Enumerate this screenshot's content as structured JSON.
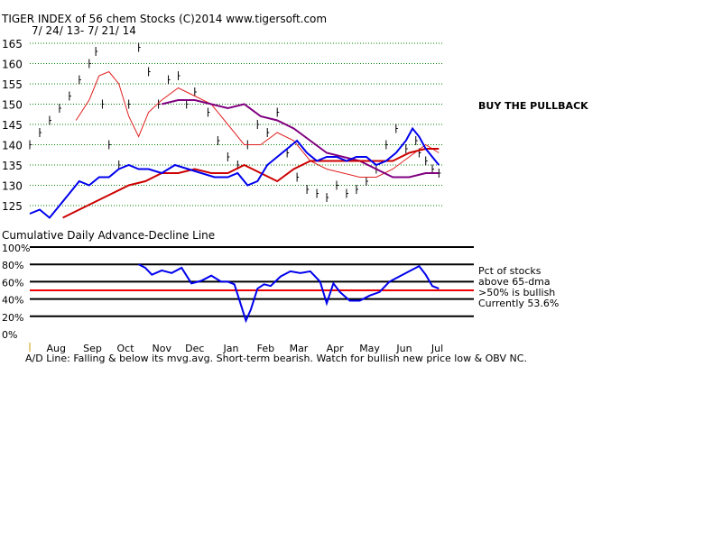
{
  "chart_data": [
    {
      "type": "line",
      "title": "TIGER INDEX of  56 chem Stocks  (C)2014  www.tigersoft.com",
      "subtitle": "7/ 24/ 13- 7/ 21/ 14",
      "annotation": "BUY THE PULLBACK",
      "ylim": [
        122,
        168
      ],
      "yticks": [
        125,
        130,
        135,
        140,
        145,
        150,
        155,
        160,
        165
      ],
      "grid": true,
      "x_index_range": [
        0,
        250
      ],
      "colors": {
        "price": "#000000",
        "ma_short": "#e02020",
        "ma_long": "#cc0000",
        "ma_mid": "#800080",
        "adline": "#0000ee",
        "grid": "#008000"
      },
      "series": [
        {
          "key": "price",
          "style": "bars",
          "x": [
            0,
            6,
            12,
            18,
            24,
            30,
            36,
            40,
            44,
            48,
            54,
            60,
            66,
            72,
            78,
            84,
            90,
            95,
            100,
            108,
            114,
            120,
            126,
            132,
            138,
            144,
            150,
            156,
            162,
            168,
            174,
            180,
            186,
            192,
            198,
            204,
            210,
            216,
            222,
            228,
            234,
            236,
            240,
            244,
            248
          ],
          "values": [
            140,
            143,
            146,
            149,
            152,
            156,
            160,
            163,
            150,
            140,
            135,
            150,
            164,
            158,
            150,
            156,
            157,
            150,
            153,
            148,
            141,
            137,
            135,
            140,
            145,
            143,
            148,
            138,
            132,
            129,
            128,
            127,
            130,
            128,
            129,
            131,
            134,
            140,
            144,
            139,
            141,
            138,
            136,
            134,
            133
          ]
        },
        {
          "key": "ma_short",
          "style": "line",
          "x": [
            28,
            36,
            42,
            48,
            54,
            60,
            66,
            72,
            80,
            90,
            100,
            110,
            120,
            130,
            140,
            150,
            160,
            170,
            180,
            190,
            200,
            210,
            220,
            230,
            240,
            248
          ],
          "values": [
            146,
            151,
            157,
            158,
            155,
            147,
            142,
            148,
            151,
            154,
            152,
            150,
            145,
            140,
            140,
            143,
            141,
            136,
            134,
            133,
            132,
            132,
            134,
            137,
            140,
            138
          ]
        },
        {
          "key": "ma_mid",
          "style": "line",
          "x": [
            80,
            90,
            100,
            110,
            120,
            130,
            140,
            150,
            160,
            170,
            180,
            190,
            200,
            210,
            220,
            230,
            240,
            248
          ],
          "values": [
            150,
            151,
            151,
            150,
            149,
            150,
            147,
            146,
            144,
            141,
            138,
            137,
            136,
            134,
            132,
            132,
            133,
            133
          ]
        },
        {
          "key": "ma_long",
          "style": "line",
          "x": [
            20,
            30,
            40,
            50,
            60,
            70,
            80,
            90,
            100,
            110,
            120,
            130,
            140,
            150,
            160,
            170,
            180,
            190,
            200,
            210,
            220,
            230,
            240,
            248
          ],
          "values": [
            122,
            124,
            126,
            128,
            130,
            131,
            133,
            133,
            134,
            133,
            133,
            135,
            133,
            131,
            134,
            136,
            136,
            136,
            136,
            136,
            136,
            138,
            139,
            139
          ]
        },
        {
          "key": "adline",
          "style": "line",
          "x": [
            0,
            6,
            12,
            18,
            24,
            30,
            36,
            42,
            48,
            54,
            60,
            66,
            72,
            80,
            88,
            96,
            104,
            112,
            120,
            126,
            132,
            138,
            144,
            150,
            156,
            162,
            168,
            174,
            180,
            186,
            192,
            198,
            204,
            210,
            216,
            222,
            228,
            232,
            236,
            240,
            244,
            248
          ],
          "values": [
            123,
            124,
            122,
            125,
            128,
            131,
            130,
            132,
            132,
            134,
            135,
            134,
            134,
            133,
            135,
            134,
            133,
            132,
            132,
            133,
            130,
            131,
            135,
            137,
            139,
            141,
            138,
            136,
            137,
            137,
            136,
            137,
            137,
            135,
            136,
            138,
            141,
            144,
            142,
            139,
            137,
            135
          ]
        }
      ]
    },
    {
      "type": "line",
      "title": "Cumulative Daily Advance-Decline Line",
      "ylim": [
        0,
        100
      ],
      "yticks": [
        0,
        20,
        40,
        60,
        80,
        100
      ],
      "ytick_labels": [
        "0%",
        "20%",
        "40%",
        "60%",
        "80%",
        "100%"
      ],
      "threshold": 50,
      "x_index_range": [
        0,
        250
      ],
      "categories": [
        "Aug",
        "Sep",
        "Oct",
        "Nov",
        "Dec",
        "Jan",
        "Feb",
        "Mar",
        "Apr",
        "May",
        "Jun",
        "Jul"
      ],
      "category_x": [
        16,
        38,
        58,
        80,
        100,
        122,
        143,
        163,
        185,
        206,
        227,
        247
      ],
      "legend_lines": [
        "Pct of stocks",
        "above 65-dma",
        ">50% is bullish",
        "Currently  53.6%"
      ],
      "commentary": "A/D Line: Falling & below its mvg.avg. Short-term bearish. Watch for bullish new price low & OBV NC.",
      "series": [
        {
          "key": "pct_above_65dma",
          "x": [
            66,
            70,
            74,
            80,
            86,
            92,
            98,
            104,
            110,
            116,
            120,
            124,
            128,
            131,
            134,
            138,
            142,
            146,
            152,
            158,
            164,
            170,
            176,
            180,
            184,
            188,
            194,
            200,
            206,
            212,
            218,
            224,
            230,
            236,
            240,
            244,
            248
          ],
          "values": [
            80,
            76,
            68,
            73,
            70,
            76,
            58,
            61,
            67,
            60,
            60,
            57,
            33,
            15,
            28,
            52,
            57,
            55,
            66,
            72,
            70,
            72,
            60,
            35,
            58,
            48,
            38,
            38,
            44,
            48,
            60,
            66,
            72,
            78,
            68,
            55,
            52
          ]
        }
      ]
    }
  ]
}
